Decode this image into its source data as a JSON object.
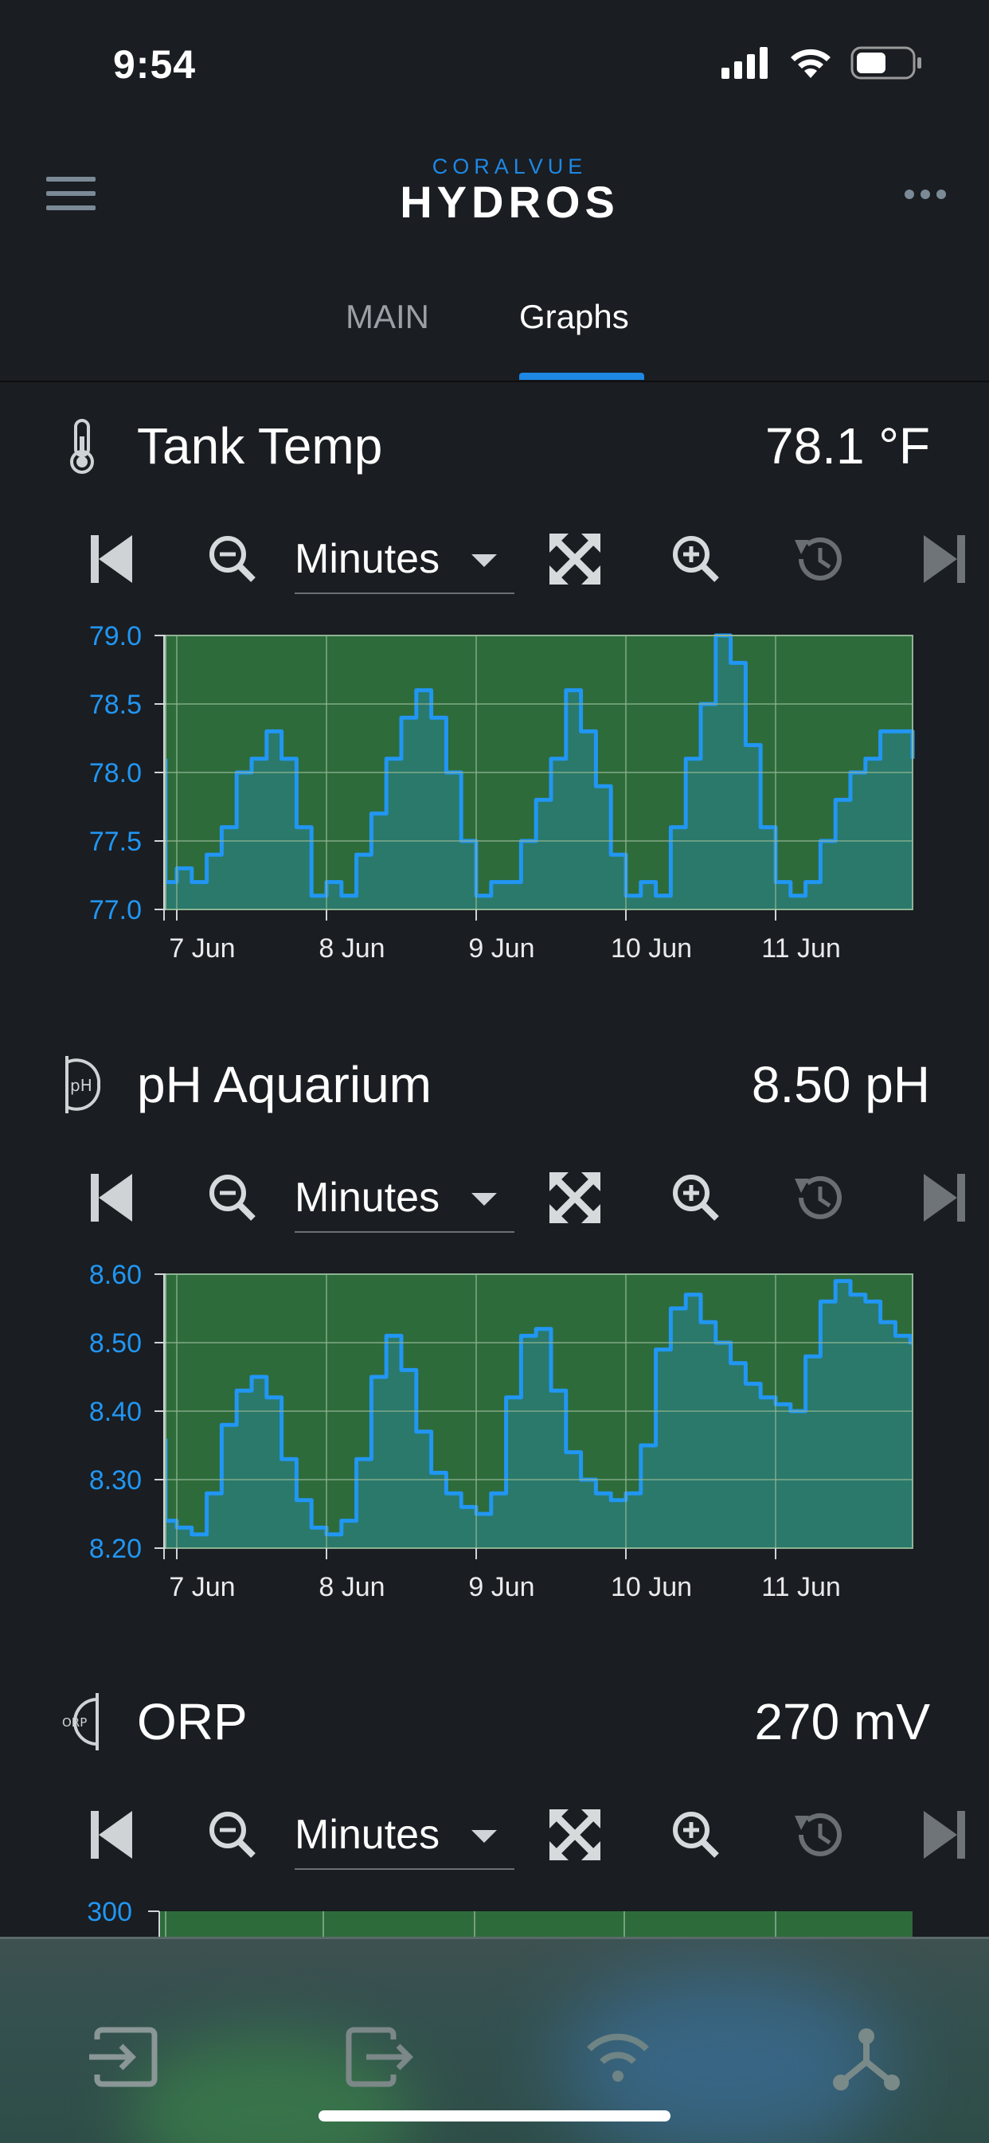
{
  "status_bar": {
    "time": "9:54"
  },
  "header": {
    "logo_top": "CORALVUE",
    "logo_main": "HYDROS"
  },
  "tabs": [
    {
      "label": "MAIN"
    },
    {
      "label": "Graphs"
    }
  ],
  "colors": {
    "accent": "#1e88e5",
    "chart_fill": "#2e6b3a",
    "chart_area": "#2a7a6e",
    "line": "#2196f3",
    "axis_text": "#2196f3"
  },
  "cards": [
    {
      "title": "Tank Temp",
      "value": "78.1 °F",
      "icon": "thermometer-icon",
      "range": "Minutes"
    },
    {
      "title": "pH Aquarium",
      "value": "8.50 pH",
      "icon": "ph-probe-icon",
      "range": "Minutes"
    },
    {
      "title": "ORP",
      "value": "270 mV",
      "icon": "orp-probe-icon",
      "range": "Minutes"
    }
  ],
  "chart_data": [
    {
      "type": "area",
      "ylim": [
        77.0,
        79.0
      ],
      "yticks": [
        "79.0",
        "78.5",
        "78.0",
        "77.5",
        "77.0"
      ],
      "xticks": [
        "7 Jun",
        "8 Jun",
        "9 Jun",
        "10 Jun",
        "11 Jun"
      ],
      "grid": true,
      "series": [
        {
          "x": [
            6.6,
            6.7,
            6.8,
            6.9,
            7.0,
            7.1,
            7.2,
            7.3,
            7.4,
            7.5,
            7.6,
            7.7,
            7.8,
            7.9,
            8.0,
            8.1,
            8.2,
            8.3,
            8.4,
            8.5,
            8.6,
            8.7,
            8.8,
            8.9,
            9.0,
            9.1,
            9.2,
            9.3,
            9.4,
            9.5,
            9.6,
            9.7,
            9.8,
            9.9,
            10.0,
            10.1,
            10.2,
            10.3,
            10.4,
            10.5,
            10.6,
            10.7,
            10.8,
            10.9,
            11.0,
            11.1,
            11.2,
            11.3,
            11.4,
            11.5,
            11.6,
            11.7,
            11.8,
            11.9,
            12.0
          ],
          "values": [
            78.1,
            77.9,
            77.5,
            77.2,
            77.3,
            77.2,
            77.4,
            77.6,
            78.0,
            78.1,
            78.3,
            78.1,
            77.6,
            77.1,
            77.2,
            77.1,
            77.4,
            77.7,
            78.1,
            78.4,
            78.6,
            78.4,
            78.0,
            77.5,
            77.1,
            77.2,
            77.2,
            77.5,
            77.8,
            78.1,
            78.6,
            78.3,
            77.9,
            77.4,
            77.1,
            77.2,
            77.1,
            77.6,
            78.1,
            78.5,
            79.0,
            78.8,
            78.2,
            77.6,
            77.2,
            77.1,
            77.2,
            77.5,
            77.8,
            78.0,
            78.1,
            78.3,
            78.3,
            78.3,
            78.1
          ]
        }
      ]
    },
    {
      "type": "area",
      "ylim": [
        8.2,
        8.6
      ],
      "yticks": [
        "8.60",
        "8.50",
        "8.40",
        "8.30",
        "8.20"
      ],
      "xticks": [
        "7 Jun",
        "8 Jun",
        "9 Jun",
        "10 Jun",
        "11 Jun"
      ],
      "grid": true,
      "series": [
        {
          "x": [
            6.6,
            6.7,
            6.8,
            6.9,
            7.0,
            7.1,
            7.2,
            7.3,
            7.4,
            7.5,
            7.6,
            7.7,
            7.8,
            7.9,
            8.0,
            8.1,
            8.2,
            8.3,
            8.4,
            8.5,
            8.6,
            8.7,
            8.8,
            8.9,
            9.0,
            9.1,
            9.2,
            9.3,
            9.4,
            9.5,
            9.6,
            9.7,
            9.8,
            9.9,
            10.0,
            10.1,
            10.2,
            10.3,
            10.4,
            10.5,
            10.6,
            10.7,
            10.8,
            10.9,
            11.0,
            11.1,
            11.2,
            11.3,
            11.4,
            11.5,
            11.6,
            11.7,
            11.8,
            11.9,
            12.0
          ],
          "values": [
            8.36,
            8.3,
            8.26,
            8.24,
            8.23,
            8.22,
            8.28,
            8.38,
            8.43,
            8.45,
            8.42,
            8.33,
            8.27,
            8.23,
            8.22,
            8.24,
            8.33,
            8.45,
            8.51,
            8.46,
            8.37,
            8.31,
            8.28,
            8.26,
            8.25,
            8.28,
            8.42,
            8.51,
            8.52,
            8.43,
            8.34,
            8.3,
            8.28,
            8.27,
            8.28,
            8.35,
            8.49,
            8.55,
            8.57,
            8.53,
            8.5,
            8.47,
            8.44,
            8.42,
            8.41,
            8.4,
            8.48,
            8.56,
            8.59,
            8.57,
            8.56,
            8.53,
            8.51,
            8.5,
            8.5
          ]
        }
      ]
    },
    {
      "type": "area",
      "ylim": [
        null,
        300
      ],
      "yticks": [
        "300"
      ],
      "grid": true,
      "series": []
    }
  ],
  "bottom_nav": [
    {
      "icon": "input-icon"
    },
    {
      "icon": "output-icon"
    },
    {
      "icon": "wifi-icon"
    },
    {
      "icon": "network-icon"
    }
  ]
}
